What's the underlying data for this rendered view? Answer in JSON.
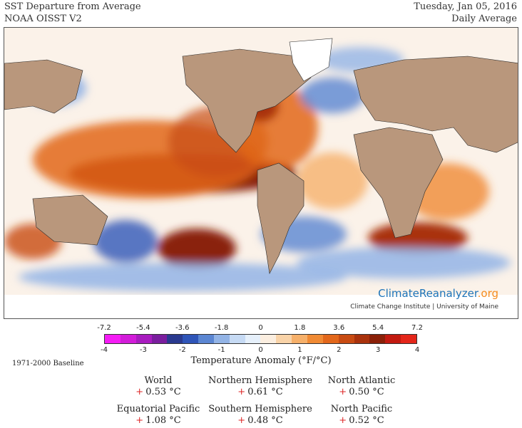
{
  "header": {
    "title_line1": "SST Departure from Average",
    "title_line2": "NOAA OISST V2",
    "date": "Tuesday, Jan 05, 2016",
    "average_type": "Daily Average"
  },
  "map": {
    "logo_part1": "ClimateReanalyzer",
    "logo_part2": ".org",
    "logo_sub": "Climate Change Institute | University of Maine"
  },
  "legend": {
    "fahrenheit_ticks": [
      "-7.2",
      "-5.4",
      "-3.6",
      "-1.8",
      "0",
      "1.8",
      "3.6",
      "5.4",
      "7.2"
    ],
    "celsius_ticks": [
      "-4",
      "-3",
      "-2",
      "-1",
      "0",
      "1",
      "2",
      "3",
      "4"
    ],
    "title": "Temperature Anomaly (°F/°C)",
    "colors": [
      "#f51cf5",
      "#d21cd9",
      "#a81cbf",
      "#7a1e9e",
      "#2a3a8f",
      "#2f55b8",
      "#5b86d2",
      "#93b4e6",
      "#c6daf4",
      "#e6f0fb",
      "#fbeee0",
      "#f9d3a8",
      "#f6b06a",
      "#f08a34",
      "#e2671b",
      "#c84b12",
      "#a9320c",
      "#8a2008",
      "#c21a10",
      "#e4261a"
    ],
    "baseline": "1971-2000 Baseline"
  },
  "stats": [
    {
      "name": "World",
      "sign": "+",
      "value": "0.53 °C"
    },
    {
      "name": "Northern Hemisphere",
      "sign": "+",
      "value": "0.61 °C"
    },
    {
      "name": "North Atlantic",
      "sign": "+",
      "value": "0.50 °C"
    },
    {
      "name": "Equatorial Pacific",
      "sign": "+",
      "value": "1.08 °C"
    },
    {
      "name": "Southern Hemisphere",
      "sign": "+",
      "value": "0.48 °C"
    },
    {
      "name": "North Pacific",
      "sign": "+",
      "value": "0.52 °C"
    }
  ]
}
